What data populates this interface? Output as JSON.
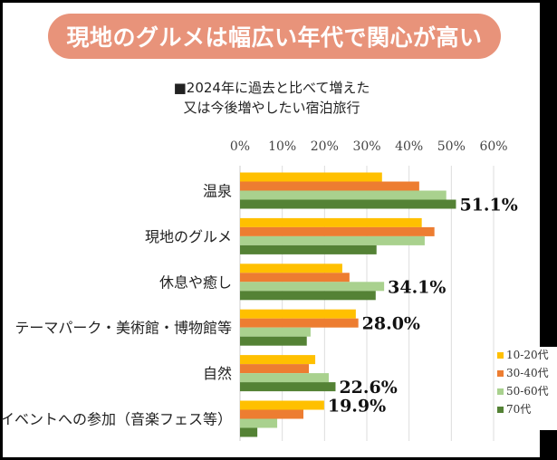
{
  "title": "現地のグルメは幅広い年代で関心が高い",
  "subtitle_lines": [
    "■2024年に過去と比べて増えた",
    "又は今後増やしたい宿泊旅行"
  ],
  "chart_data": {
    "type": "bar",
    "orientation": "horizontal",
    "categories": [
      "温泉",
      "現地のグルメ",
      "休息や癒し",
      "テーマパーク・美術館・博物館等",
      "自然",
      "趣味のイベントへの参加（音楽フェス等）"
    ],
    "series": [
      {
        "name": "10-20代",
        "color": "#ffc000",
        "values": [
          33.6,
          43.0,
          24.2,
          27.4,
          17.8,
          19.9
        ]
      },
      {
        "name": "30-40代",
        "color": "#ed7d31",
        "values": [
          42.4,
          46.0,
          25.9,
          28.0,
          16.3,
          15.0
        ]
      },
      {
        "name": "50-60代",
        "color": "#a9d18e",
        "values": [
          48.8,
          43.7,
          34.1,
          16.7,
          21.0,
          8.8
        ]
      },
      {
        "name": "70代",
        "color": "#548235",
        "values": [
          51.1,
          32.3,
          32.1,
          15.8,
          22.6,
          4.1
        ]
      }
    ],
    "data_labels": [
      {
        "category_index": 0,
        "series_index": 3,
        "text": "51.1%"
      },
      {
        "category_index": 2,
        "series_index": 2,
        "text": "34.1%"
      },
      {
        "category_index": 3,
        "series_index": 1,
        "text": "28.0%"
      },
      {
        "category_index": 4,
        "series_index": 3,
        "text": "22.6%"
      },
      {
        "category_index": 5,
        "series_index": 0,
        "text": "19.9%"
      }
    ],
    "xlim": [
      0,
      60
    ],
    "tick_labels": [
      "0%",
      "10%",
      "20%",
      "30%",
      "40%",
      "50%",
      "60%"
    ],
    "grid": true,
    "legend_position": "bottom-right"
  }
}
